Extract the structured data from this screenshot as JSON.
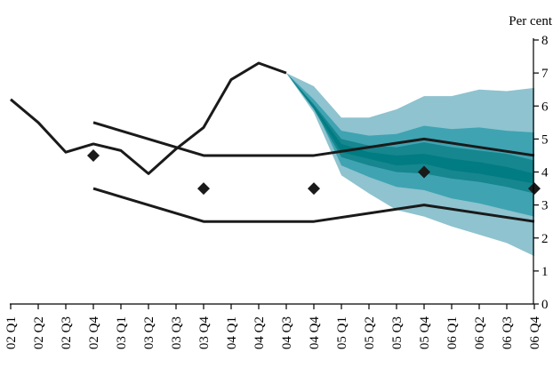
{
  "chart_data": {
    "type": "line",
    "title": "",
    "ylabel": "Per cent",
    "xlabel": "",
    "ylim": [
      0,
      8
    ],
    "y_ticks": [
      0,
      1,
      2,
      3,
      4,
      5,
      6,
      7,
      8
    ],
    "grid": false,
    "categories": [
      "02 Q1",
      "02 Q2",
      "02 Q3",
      "02 Q4",
      "03 Q1",
      "03 Q2",
      "03 Q3",
      "03 Q4",
      "04 Q1",
      "04 Q2",
      "04 Q3",
      "04 Q4",
      "05 Q1",
      "05 Q2",
      "05 Q3",
      "05 Q4",
      "06 Q1",
      "06 Q2",
      "06 Q3",
      "06 Q4"
    ],
    "series": [
      {
        "style": "solid-black",
        "x": [
          "02 Q1",
          "02 Q2",
          "02 Q3",
          "02 Q4",
          "03 Q1",
          "03 Q2",
          "03 Q3",
          "03 Q4",
          "04 Q1",
          "04 Q2",
          "04 Q3"
        ],
        "values": [
          6.2,
          5.5,
          4.6,
          4.85,
          4.65,
          3.95,
          4.7,
          5.35,
          6.8,
          7.3,
          7.0
        ]
      },
      {
        "style": "solid-black",
        "x": [
          "02 Q4",
          "03 Q4",
          "04 Q4",
          "05 Q4",
          "06 Q4"
        ],
        "values": [
          5.5,
          4.5,
          4.5,
          5.0,
          4.5
        ]
      },
      {
        "style": "solid-black",
        "x": [
          "02 Q4",
          "03 Q4",
          "04 Q4",
          "05 Q4",
          "06 Q4"
        ],
        "values": [
          3.5,
          2.5,
          2.5,
          3.0,
          2.5
        ]
      },
      {
        "style": "diamond-markers",
        "x": [
          "02 Q4",
          "03 Q4",
          "04 Q4",
          "05 Q4",
          "06 Q4"
        ],
        "values": [
          4.5,
          3.5,
          3.5,
          4.0,
          3.5
        ]
      }
    ],
    "fan": {
      "x": [
        "04 Q3",
        "04 Q4",
        "05 Q1",
        "05 Q2",
        "05 Q3",
        "05 Q4",
        "06 Q1",
        "06 Q2",
        "06 Q3",
        "06 Q4"
      ],
      "bands": [
        {
          "color": "#8ec3cf",
          "upper": [
            7.0,
            6.6,
            5.65,
            5.65,
            5.9,
            6.3,
            6.3,
            6.5,
            6.45,
            6.55
          ],
          "lower": [
            7.0,
            5.8,
            3.9,
            3.35,
            2.85,
            2.65,
            2.35,
            2.1,
            1.85,
            1.45
          ]
        },
        {
          "color": "#3fa3b2",
          "upper": [
            7.0,
            6.2,
            5.25,
            5.1,
            5.15,
            5.4,
            5.3,
            5.35,
            5.25,
            5.2
          ],
          "lower": [
            7.0,
            6.0,
            4.2,
            3.85,
            3.55,
            3.45,
            3.2,
            3.05,
            2.85,
            2.65
          ]
        },
        {
          "color": "#16868f",
          "upper": [
            7.0,
            6.05,
            5.0,
            4.8,
            4.75,
            4.9,
            4.75,
            4.65,
            4.55,
            4.35
          ],
          "lower": [
            7.0,
            5.9,
            4.45,
            4.2,
            4.0,
            3.95,
            3.8,
            3.7,
            3.55,
            3.35
          ]
        },
        {
          "color": "#007c82",
          "upper": [
            7.0,
            6.0,
            4.85,
            4.6,
            4.5,
            4.55,
            4.4,
            4.3,
            4.15,
            3.95
          ],
          "lower": [
            7.0,
            5.95,
            4.6,
            4.4,
            4.2,
            4.25,
            4.05,
            3.95,
            3.8,
            3.65
          ]
        }
      ]
    }
  }
}
